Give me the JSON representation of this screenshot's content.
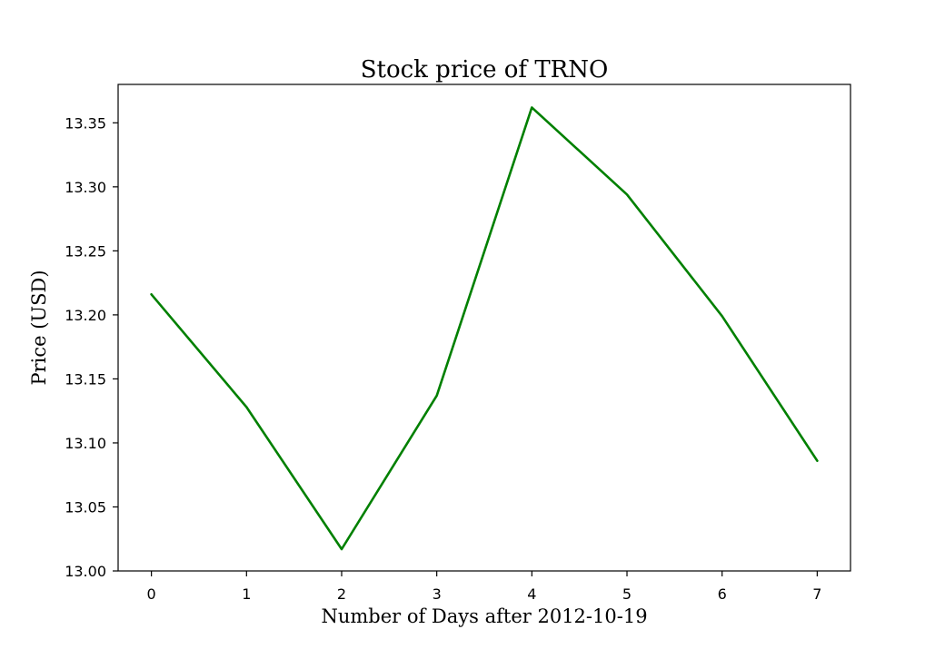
{
  "chart_data": {
    "type": "line",
    "title": "Stock price of TRNO",
    "xlabel": "Number of Days after 2012-10-19",
    "ylabel": "Price (USD)",
    "x": [
      0,
      1,
      2,
      3,
      4,
      5,
      6,
      7
    ],
    "series": [
      {
        "values": [
          13.216,
          13.128,
          13.017,
          13.137,
          13.362,
          13.294,
          13.199,
          13.086
        ],
        "color": "#008000"
      }
    ],
    "xticks": [
      "0",
      "1",
      "2",
      "3",
      "4",
      "5",
      "6",
      "7"
    ],
    "yticks": [
      "13.00",
      "13.05",
      "13.10",
      "13.15",
      "13.20",
      "13.25",
      "13.30",
      "13.35"
    ],
    "xlim": [
      -0.35,
      7.35
    ],
    "ylim": [
      13.0,
      13.38
    ],
    "grid": false,
    "legend": "none"
  }
}
